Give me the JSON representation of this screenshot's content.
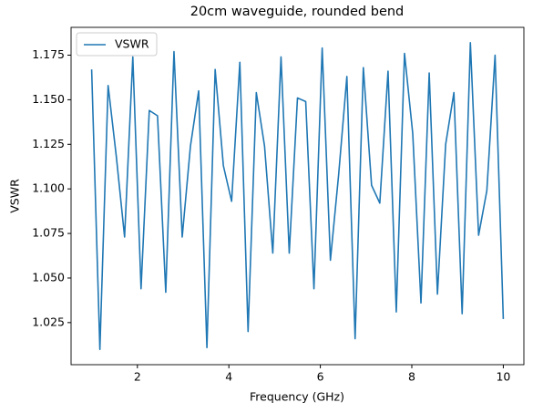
{
  "chart_data": {
    "type": "line",
    "title": "20cm waveguide, rounded bend",
    "x_label": "Frequency (GHz)",
    "y_label": "VSWR",
    "x": [
      1.0,
      1.18,
      1.36,
      1.54,
      1.72,
      1.9,
      2.08,
      2.26,
      2.44,
      2.62,
      2.8,
      2.98,
      3.16,
      3.34,
      3.52,
      3.7,
      3.88,
      4.06,
      4.24,
      4.42,
      4.6,
      4.78,
      4.96,
      5.14,
      5.32,
      5.5,
      5.68,
      5.86,
      6.04,
      6.22,
      6.4,
      6.58,
      6.76,
      6.94,
      7.12,
      7.3,
      7.48,
      7.66,
      7.84,
      8.02,
      8.2,
      8.38,
      8.56,
      8.74,
      8.92,
      9.1,
      9.28,
      9.46,
      9.64,
      9.82,
      10.0
    ],
    "series": [
      {
        "name": "VSWR",
        "color": "#1f77b4",
        "values": [
          1.167,
          1.01,
          1.158,
          1.118,
          1.073,
          1.174,
          1.044,
          1.144,
          1.141,
          1.042,
          1.177,
          1.073,
          1.124,
          1.155,
          1.011,
          1.167,
          1.113,
          1.093,
          1.171,
          1.02,
          1.154,
          1.124,
          1.064,
          1.174,
          1.064,
          1.151,
          1.149,
          1.044,
          1.179,
          1.06,
          1.108,
          1.163,
          1.016,
          1.168,
          1.102,
          1.092,
          1.166,
          1.031,
          1.176,
          1.131,
          1.036,
          1.165,
          1.041,
          1.125,
          1.154,
          1.03,
          1.182,
          1.074,
          1.099,
          1.175,
          1.027
        ]
      }
    ],
    "xlim": [
      0.55,
      10.45
    ],
    "xticks": [
      2,
      4,
      6,
      8,
      10
    ],
    "ylim": [
      1.0014,
      1.1906
    ],
    "yticks": [
      1.025,
      {
        "value": 1.05,
        "label": "1.050"
      },
      1.075,
      {
        "value": 1.1,
        "label": "1.100"
      },
      1.125,
      {
        "value": 1.15,
        "label": "1.150"
      },
      1.175
    ],
    "legend": "upper left"
  }
}
